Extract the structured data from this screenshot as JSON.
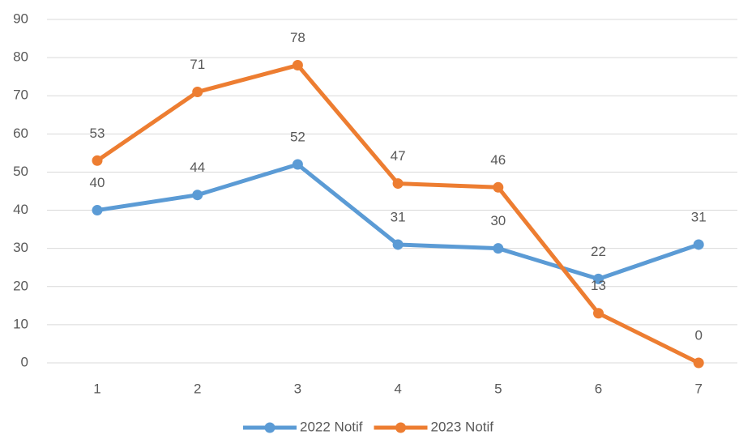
{
  "chart_data": {
    "type": "line",
    "categories": [
      "1",
      "2",
      "3",
      "4",
      "5",
      "6",
      "7"
    ],
    "series": [
      {
        "name": "2022 Notif",
        "color": "#5b9bd5",
        "values": [
          40,
          44,
          52,
          31,
          30,
          22,
          31
        ]
      },
      {
        "name": "2023 Notif",
        "color": "#ed7d31",
        "values": [
          53,
          71,
          78,
          47,
          46,
          13,
          0
        ]
      }
    ],
    "ylim": [
      0,
      90
    ],
    "yticks": [
      0,
      10,
      20,
      30,
      40,
      50,
      60,
      70,
      80,
      90
    ],
    "grid": true,
    "legend": "bottom",
    "data_labels": true
  }
}
